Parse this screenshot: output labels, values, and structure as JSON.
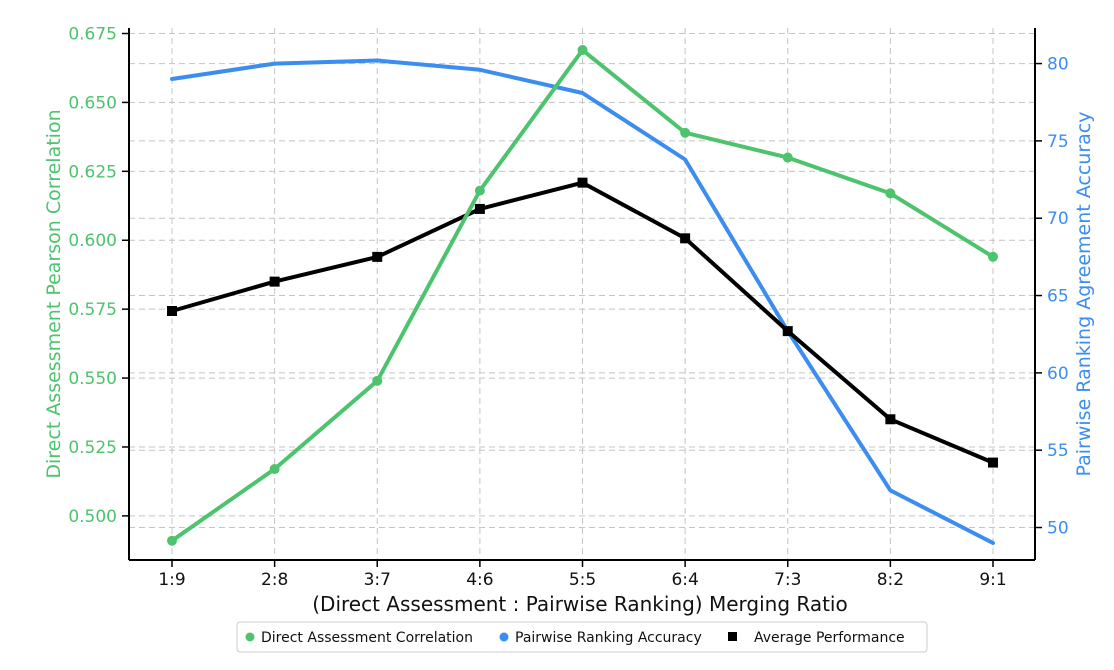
{
  "chart_data": {
    "type": "line",
    "xlabel": "(Direct Assessment : Pairwise Ranking) Merging Ratio",
    "ylabel_left": "Direct Assessment Pearson Correlation",
    "ylabel_right": "Pairwise Ranking Agreement Accuracy",
    "categories": [
      "1:9",
      "2:8",
      "3:7",
      "4:6",
      "5:5",
      "6:4",
      "7:3",
      "8:2",
      "9:1"
    ],
    "ylim_left": [
      0.484,
      0.677
    ],
    "yticks_left": [
      "0.500",
      "0.525",
      "0.550",
      "0.575",
      "0.600",
      "0.625",
      "0.650",
      "0.675"
    ],
    "ylim_right": [
      47.9,
      82.3
    ],
    "yticks_right": [
      "50",
      "55",
      "60",
      "65",
      "70",
      "75",
      "80"
    ],
    "grid": true,
    "legend_position": "bottom-center",
    "series": [
      {
        "name": "Direct Assessment Correlation",
        "axis": "left",
        "marker": "circle",
        "color": "#4ec36e",
        "values": [
          0.491,
          0.517,
          0.549,
          0.618,
          0.669,
          0.639,
          0.63,
          0.617,
          0.594
        ]
      },
      {
        "name": "Pairwise Ranking Accuracy",
        "axis": "right",
        "marker": "none",
        "color": "#3b8ef0",
        "values": [
          79.0,
          80.0,
          80.2,
          79.6,
          78.1,
          73.8,
          62.7,
          52.4,
          49.0
        ]
      },
      {
        "name": "Average Performance",
        "axis": "right",
        "marker": "square",
        "color": "#000000",
        "values": [
          64.0,
          65.9,
          67.5,
          70.6,
          72.3,
          68.7,
          62.7,
          57.0,
          54.2
        ]
      }
    ]
  }
}
